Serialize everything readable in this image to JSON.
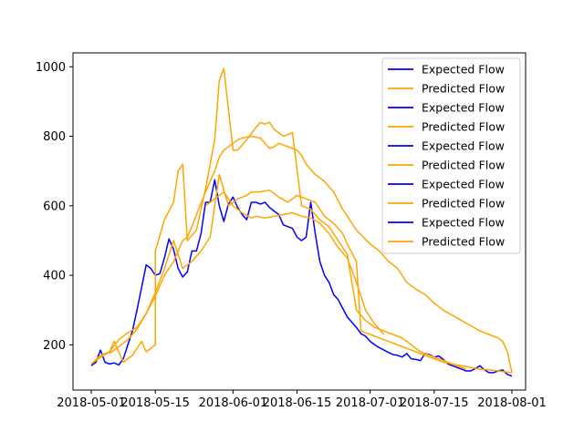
{
  "chart_data": {
    "type": "line",
    "title": "",
    "xlabel": "",
    "ylabel": "",
    "xlim": [
      "2018-04-27",
      "2018-08-04"
    ],
    "ylim": [
      70,
      1040
    ],
    "x_ticks": [
      "2018-05-01",
      "2018-05-15",
      "2018-06-01",
      "2018-06-15",
      "2018-07-01",
      "2018-07-15",
      "2018-08-01"
    ],
    "y_ticks": [
      200,
      400,
      600,
      800,
      1000
    ],
    "grid": false,
    "legend_position": "top-right",
    "legend": [
      "Expected Flow",
      "Predicted Flow",
      "Expected Flow",
      "Predicted Flow",
      "Expected Flow",
      "Predicted Flow",
      "Expected Flow",
      "Predicted Flow",
      "Expected Flow",
      "Predicted Flow"
    ],
    "colors": {
      "expected": "#0000ff",
      "predicted": "#ffa500"
    },
    "series": [
      {
        "name": "Expected Flow",
        "color": "#0000ff",
        "x": [
          "2018-05-01",
          "2018-05-02",
          "2018-05-03",
          "2018-05-04",
          "2018-05-05",
          "2018-05-06",
          "2018-05-07",
          "2018-05-08",
          "2018-05-09",
          "2018-05-10",
          "2018-05-11",
          "2018-05-12",
          "2018-05-13",
          "2018-05-14",
          "2018-05-15",
          "2018-05-16",
          "2018-05-17",
          "2018-05-18",
          "2018-05-19",
          "2018-05-20",
          "2018-05-21",
          "2018-05-22",
          "2018-05-23",
          "2018-05-24",
          "2018-05-25",
          "2018-05-26",
          "2018-05-27",
          "2018-05-28",
          "2018-05-29",
          "2018-05-30",
          "2018-05-31",
          "2018-06-01",
          "2018-06-02",
          "2018-06-03",
          "2018-06-04",
          "2018-06-05",
          "2018-06-06",
          "2018-06-07",
          "2018-06-08",
          "2018-06-09",
          "2018-06-10",
          "2018-06-11",
          "2018-06-12",
          "2018-06-13",
          "2018-06-14",
          "2018-06-15",
          "2018-06-16",
          "2018-06-17",
          "2018-06-18",
          "2018-06-19",
          "2018-06-20",
          "2018-06-21",
          "2018-06-22",
          "2018-06-23",
          "2018-06-24",
          "2018-06-25",
          "2018-06-26",
          "2018-06-27",
          "2018-06-28",
          "2018-06-29",
          "2018-06-30",
          "2018-07-01",
          "2018-07-02",
          "2018-07-03",
          "2018-07-04",
          "2018-07-05",
          "2018-07-06",
          "2018-07-07",
          "2018-07-08",
          "2018-07-09",
          "2018-07-10",
          "2018-07-11",
          "2018-07-12",
          "2018-07-13",
          "2018-07-14",
          "2018-07-15",
          "2018-07-16",
          "2018-07-17",
          "2018-07-18",
          "2018-07-19",
          "2018-07-20",
          "2018-07-21",
          "2018-07-22",
          "2018-07-23",
          "2018-07-24",
          "2018-07-25",
          "2018-07-26",
          "2018-07-27",
          "2018-07-28",
          "2018-07-29",
          "2018-07-30",
          "2018-07-31",
          "2018-08-01"
        ],
        "y": [
          140,
          150,
          185,
          150,
          145,
          148,
          142,
          160,
          200,
          240,
          300,
          365,
          430,
          420,
          400,
          405,
          450,
          505,
          475,
          420,
          395,
          410,
          470,
          470,
          520,
          610,
          610,
          675,
          600,
          555,
          605,
          625,
          595,
          575,
          560,
          610,
          610,
          605,
          610,
          595,
          585,
          575,
          545,
          540,
          535,
          510,
          500,
          510,
          610,
          520,
          440,
          400,
          380,
          345,
          330,
          305,
          280,
          265,
          250,
          232,
          225,
          210,
          200,
          192,
          185,
          178,
          172,
          170,
          165,
          175,
          160,
          158,
          155,
          175,
          172,
          165,
          168,
          158,
          145,
          140,
          135,
          130,
          125,
          125,
          132,
          140,
          128,
          120,
          120,
          125,
          128,
          115,
          110
        ]
      },
      {
        "name": "Predicted Flow",
        "color": "#ffa500",
        "x": [
          "2018-05-01",
          "2018-05-03",
          "2018-05-05",
          "2018-05-07",
          "2018-05-08",
          "2018-05-09",
          "2018-05-11",
          "2018-05-13",
          "2018-05-15",
          "2018-05-17",
          "2018-05-19",
          "2018-05-20",
          "2018-05-21",
          "2018-05-22",
          "2018-05-23",
          "2018-05-24",
          "2018-05-26",
          "2018-05-28",
          "2018-05-29",
          "2018-05-30",
          "2018-06-01",
          "2018-06-02",
          "2018-06-03",
          "2018-06-05",
          "2018-06-07",
          "2018-06-09",
          "2018-06-10",
          "2018-06-11",
          "2018-06-12",
          "2018-06-13",
          "2018-06-15",
          "2018-06-16",
          "2018-06-17",
          "2018-06-19",
          "2018-06-21",
          "2018-06-23",
          "2018-06-25",
          "2018-06-26",
          "2018-06-28",
          "2018-07-01",
          "2018-07-03",
          "2018-07-05",
          "2018-07-07",
          "2018-07-09",
          "2018-07-11",
          "2018-07-13",
          "2018-07-15",
          "2018-07-17",
          "2018-07-19",
          "2018-07-21",
          "2018-07-23",
          "2018-07-25",
          "2018-07-27",
          "2018-07-29",
          "2018-07-30",
          "2018-07-31",
          "2018-08-01"
        ],
        "y": [
          145,
          165,
          180,
          215,
          225,
          235,
          250,
          290,
          340,
          400,
          440,
          470,
          500,
          510,
          540,
          575,
          640,
          700,
          740,
          760,
          780,
          790,
          795,
          800,
          795,
          765,
          770,
          780,
          775,
          770,
          760,
          745,
          720,
          690,
          670,
          640,
          590,
          570,
          530,
          490,
          470,
          440,
          420,
          380,
          360,
          345,
          320,
          300,
          285,
          270,
          255,
          240,
          230,
          220,
          210,
          180,
          120
        ]
      },
      {
        "name": "Predicted Flow",
        "color": "#ffa500",
        "x": [
          "2018-05-01",
          "2018-05-03",
          "2018-05-05",
          "2018-05-06",
          "2018-05-08",
          "2018-05-10",
          "2018-05-12",
          "2018-05-13",
          "2018-05-15",
          "2018-05-15",
          "2018-05-17",
          "2018-05-19",
          "2018-05-20",
          "2018-05-21",
          "2018-05-22",
          "2018-05-24",
          "2018-05-26",
          "2018-05-28",
          "2018-05-29",
          "2018-05-30",
          "2018-06-01",
          "2018-06-02",
          "2018-06-04",
          "2018-06-06",
          "2018-06-07",
          "2018-06-08",
          "2018-06-09",
          "2018-06-10",
          "2018-06-12",
          "2018-06-14",
          "2018-06-16",
          "2018-06-18",
          "2018-06-20",
          "2018-06-22",
          "2018-06-23",
          "2018-06-24",
          "2018-06-26",
          "2018-06-28",
          "2018-06-30",
          "2018-07-02",
          "2018-07-04",
          "2018-07-06",
          "2018-07-08",
          "2018-07-10",
          "2018-07-12",
          "2018-07-14",
          "2018-07-16",
          "2018-07-18",
          "2018-07-20",
          "2018-07-22"
        ],
        "y": [
          145,
          170,
          180,
          210,
          150,
          170,
          210,
          180,
          200,
          470,
          560,
          610,
          700,
          720,
          500,
          530,
          650,
          790,
          960,
          995,
          760,
          760,
          790,
          825,
          840,
          835,
          840,
          820,
          800,
          810,
          600,
          590,
          560,
          540,
          520,
          500,
          460,
          300,
          270,
          250,
          240,
          230,
          220,
          200,
          180,
          170,
          160,
          150,
          140,
          130
        ]
      },
      {
        "name": "Predicted Flow",
        "color": "#ffa500",
        "x": [
          "2018-05-05",
          "2018-05-07",
          "2018-05-09",
          "2018-05-11",
          "2018-05-13",
          "2018-05-15",
          "2018-05-17",
          "2018-05-19",
          "2018-05-21",
          "2018-05-23",
          "2018-05-25",
          "2018-05-27",
          "2018-05-29",
          "2018-05-31",
          "2018-06-02",
          "2018-06-04",
          "2018-06-05",
          "2018-06-07",
          "2018-06-09",
          "2018-06-11",
          "2018-06-13",
          "2018-06-15",
          "2018-06-17",
          "2018-06-19",
          "2018-06-21",
          "2018-06-23",
          "2018-06-25",
          "2018-06-26",
          "2018-06-28",
          "2018-06-29",
          "2018-07-01",
          "2018-07-03",
          "2018-07-05",
          "2018-07-07",
          "2018-07-09",
          "2018-07-11",
          "2018-07-13",
          "2018-07-15",
          "2018-07-17",
          "2018-07-19",
          "2018-07-21",
          "2018-07-23",
          "2018-07-25",
          "2018-07-27",
          "2018-07-29",
          "2018-07-31",
          "2018-08-01"
        ],
        "y": [
          175,
          195,
          215,
          245,
          290,
          350,
          420,
          500,
          420,
          440,
          470,
          510,
          690,
          600,
          620,
          630,
          640,
          640,
          645,
          625,
          610,
          630,
          620,
          610,
          570,
          550,
          520,
          490,
          440,
          240,
          230,
          220,
          210,
          200,
          190,
          180,
          170,
          160,
          150,
          145,
          140,
          135,
          130,
          128,
          125,
          122,
          120
        ]
      },
      {
        "name": "Predicted Flow",
        "color": "#ffa500",
        "x": [
          "2018-05-26",
          "2018-05-28",
          "2018-05-30",
          "2018-06-01",
          "2018-06-03",
          "2018-06-05",
          "2018-06-06",
          "2018-06-08",
          "2018-06-10",
          "2018-06-12",
          "2018-06-14",
          "2018-06-16",
          "2018-06-18",
          "2018-06-20",
          "2018-06-22",
          "2018-06-24",
          "2018-06-26",
          "2018-06-28",
          "2018-06-30",
          "2018-07-02",
          "2018-07-04"
        ],
        "y": [
          600,
          620,
          640,
          600,
          580,
          565,
          570,
          565,
          570,
          575,
          580,
          570,
          565,
          550,
          520,
          480,
          450,
          380,
          300,
          260,
          230
        ]
      }
    ]
  }
}
